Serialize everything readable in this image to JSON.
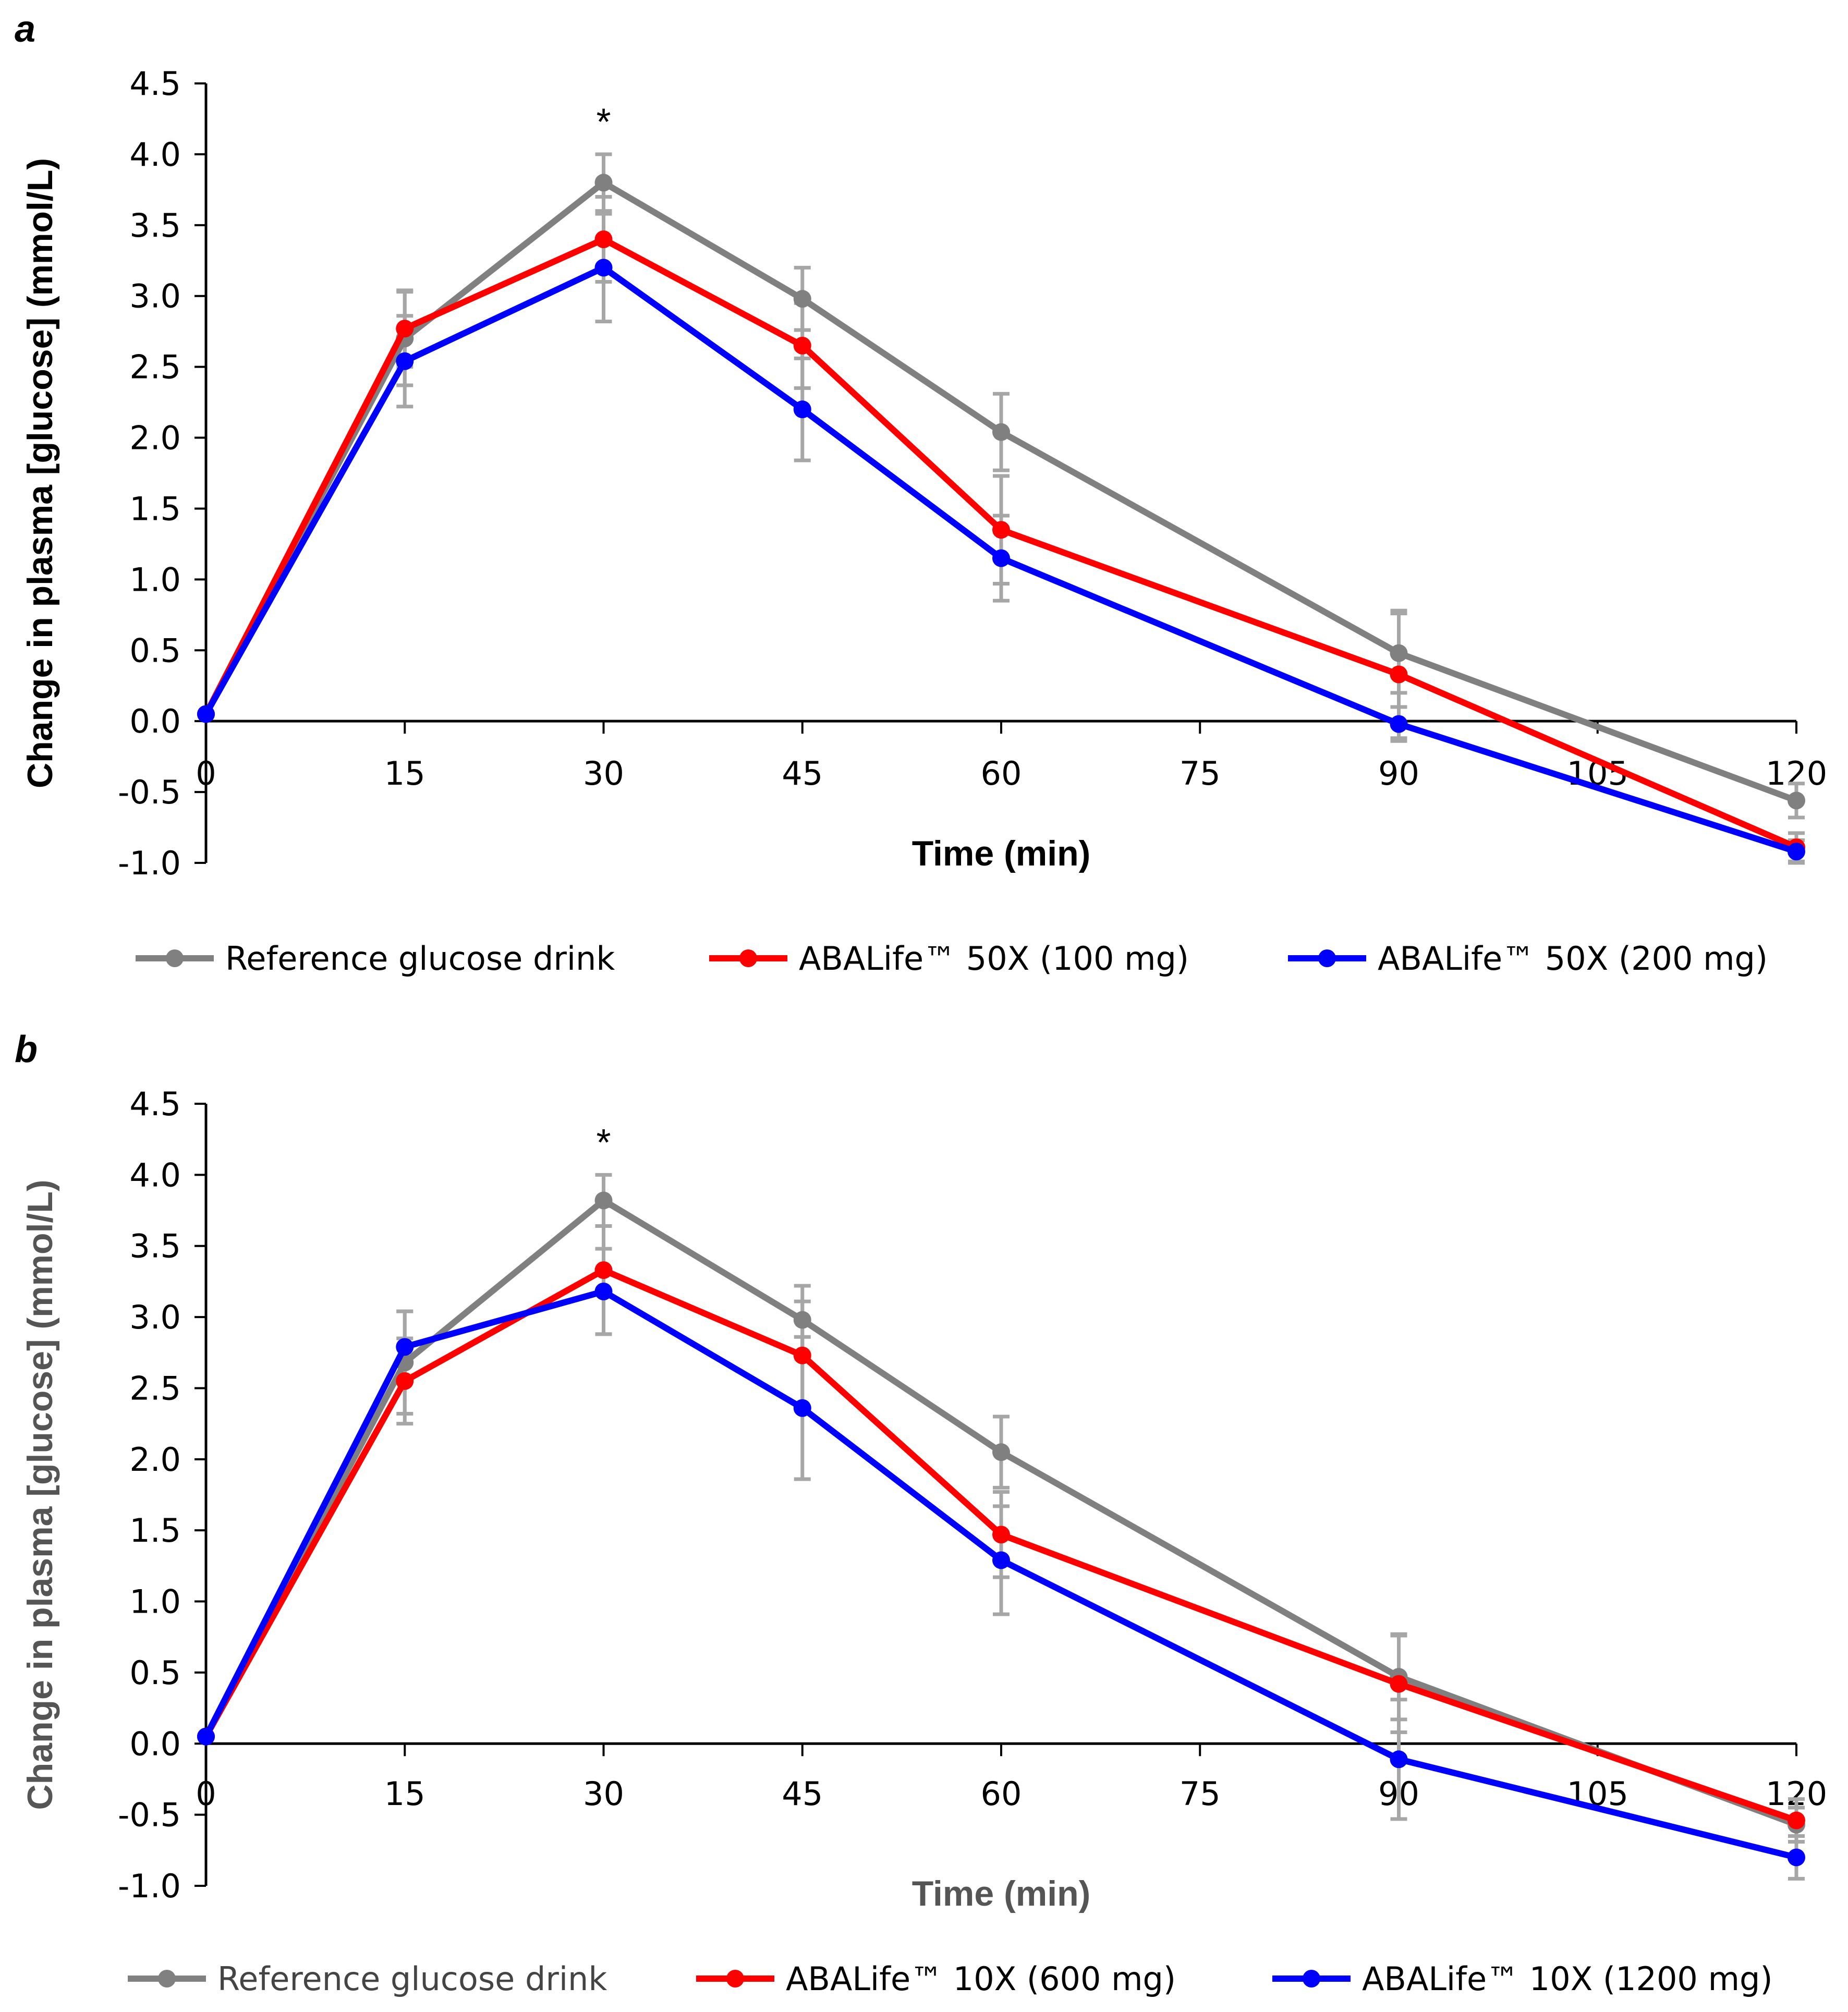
{
  "chart_data": [
    {
      "type": "line",
      "panel_label": "a",
      "xlabel": "Time (min)",
      "ylabel": "Change in plasma [glucose] (mmol/L)",
      "xlim": [
        0,
        120
      ],
      "ylim": [
        -1.0,
        4.5
      ],
      "x_ticks": [
        "0",
        "15",
        "30",
        "45",
        "60",
        "75",
        "90",
        "105",
        "120"
      ],
      "y_ticks": [
        "4.5",
        "4.0",
        "3.5",
        "3.0",
        "2.5",
        "2.0",
        "1.5",
        "1.0",
        "0.5",
        "0.0",
        "-0.5",
        "-1.0"
      ],
      "x": [
        0,
        15,
        30,
        45,
        60,
        90,
        120
      ],
      "annotation": {
        "text": "*",
        "x": 30,
        "y": 4.1
      },
      "series": [
        {
          "name": "Reference glucose drink",
          "color": "#808080",
          "values": [
            0.05,
            2.7,
            3.8,
            2.98,
            2.04,
            0.48,
            -0.56
          ],
          "error": [
            0,
            0.33,
            0.2,
            0.22,
            0.27,
            0.28,
            0.12
          ]
        },
        {
          "name": "ABALife™ 50X (100 mg)",
          "color": "#ff0000",
          "values": [
            0.05,
            2.77,
            3.4,
            2.65,
            1.35,
            0.33,
            -0.89
          ],
          "error": [
            0,
            0.27,
            0.3,
            0.3,
            0.38,
            0.45,
            0.1
          ]
        },
        {
          "name": "ABALife™ 50X (200 mg)",
          "color": "#0000ff",
          "values": [
            0.05,
            2.54,
            3.2,
            2.2,
            1.15,
            -0.02,
            -0.92
          ],
          "error": [
            0,
            0.32,
            0.38,
            0.36,
            0.3,
            0.12,
            0.08
          ]
        }
      ]
    },
    {
      "type": "line",
      "panel_label": "b",
      "xlabel": "Time (min)",
      "ylabel": "Change in plasma [glucose] (mmol/L)",
      "xlim": [
        0,
        120
      ],
      "ylim": [
        -1.0,
        4.5
      ],
      "x_ticks": [
        "0",
        "15",
        "30",
        "45",
        "60",
        "75",
        "90",
        "105",
        "120"
      ],
      "y_ticks": [
        "4.5",
        "4.0",
        "3.5",
        "3.0",
        "2.5",
        "2.0",
        "1.5",
        "1.0",
        "0.5",
        "0.0",
        "-0.5",
        "-1.0"
      ],
      "x": [
        0,
        15,
        30,
        45,
        60,
        90,
        120
      ],
      "annotation": {
        "text": "*",
        "x": 30,
        "y": 4.1
      },
      "series": [
        {
          "name": "Reference glucose drink",
          "color": "#808080",
          "values": [
            0.05,
            2.68,
            3.82,
            2.98,
            2.05,
            0.47,
            -0.57
          ],
          "error": [
            0,
            0.36,
            0.18,
            0.24,
            0.25,
            0.3,
            0.12
          ]
        },
        {
          "name": "ABALife™ 10X (600 mg)",
          "color": "#ff0000",
          "values": [
            0.05,
            2.55,
            3.33,
            2.73,
            1.47,
            0.42,
            -0.54
          ],
          "error": [
            0,
            0.3,
            0.45,
            0.38,
            0.3,
            0.34,
            0.15
          ]
        },
        {
          "name": "ABALife™ 10X (1200 mg)",
          "color": "#0000ff",
          "values": [
            0.05,
            2.79,
            3.18,
            2.36,
            1.29,
            -0.11,
            -0.8
          ],
          "error": [
            0,
            0.25,
            0.3,
            0.5,
            0.38,
            0.42,
            0.15
          ]
        }
      ]
    }
  ]
}
